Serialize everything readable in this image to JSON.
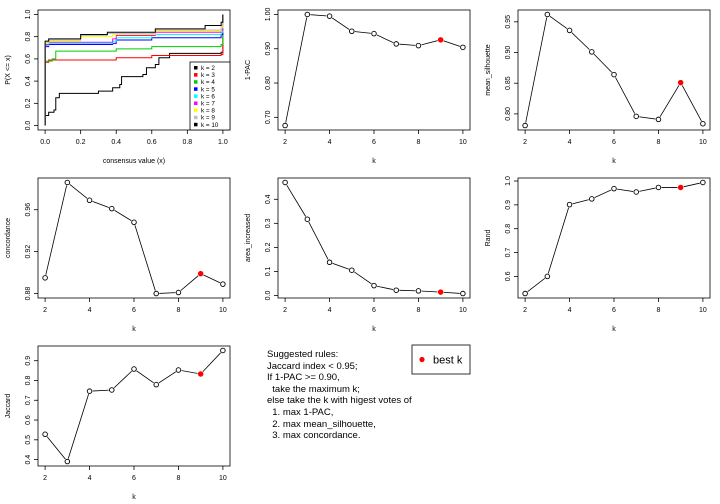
{
  "chart_data": [
    {
      "type": "line",
      "subtype": "ecdf",
      "xlabel": "consensus value (x)",
      "ylabel": "P(X <= x)",
      "xlim": [
        0,
        1
      ],
      "ylim": [
        0,
        1
      ],
      "xticks": [
        "0.0",
        "0.2",
        "0.4",
        "0.6",
        "0.8",
        "1.0"
      ],
      "yticks": [
        "0.0",
        "0.2",
        "0.4",
        "0.6",
        "0.8",
        "1.0"
      ],
      "legend_position": "bottom-right",
      "series": [
        {
          "name": "k = 2",
          "color": "#000000",
          "points": [
            [
              0,
              0
            ],
            [
              0,
              0.09
            ],
            [
              0.02,
              0.12
            ],
            [
              0.05,
              0.14
            ],
            [
              0.06,
              0.25
            ],
            [
              0.08,
              0.29
            ],
            [
              0.3,
              0.31
            ],
            [
              0.38,
              0.34
            ],
            [
              0.42,
              0.37
            ],
            [
              0.43,
              0.44
            ],
            [
              0.55,
              0.46
            ],
            [
              0.57,
              0.52
            ],
            [
              0.62,
              0.55
            ],
            [
              0.64,
              0.61
            ],
            [
              0.7,
              0.65
            ],
            [
              0.99,
              0.66
            ],
            [
              1,
              1
            ]
          ]
        },
        {
          "name": "k = 3",
          "color": "#FF0000",
          "points": [
            [
              0,
              0
            ],
            [
              0,
              0.57
            ],
            [
              0.02,
              0.59
            ],
            [
              0.4,
              0.61
            ],
            [
              0.6,
              0.63
            ],
            [
              0.99,
              0.64
            ],
            [
              1,
              1
            ]
          ]
        },
        {
          "name": "k = 4",
          "color": "#00CD00",
          "points": [
            [
              0,
              0
            ],
            [
              0,
              0.58
            ],
            [
              0.04,
              0.6
            ],
            [
              0.06,
              0.67
            ],
            [
              0.4,
              0.69
            ],
            [
              0.6,
              0.71
            ],
            [
              0.99,
              0.73
            ],
            [
              1,
              1
            ]
          ]
        },
        {
          "name": "k = 5",
          "color": "#0000FF",
          "points": [
            [
              0,
              0
            ],
            [
              0,
              0.71
            ],
            [
              0.02,
              0.73
            ],
            [
              0.38,
              0.74
            ],
            [
              0.4,
              0.77
            ],
            [
              0.6,
              0.79
            ],
            [
              0.99,
              0.82
            ],
            [
              1,
              1
            ]
          ]
        },
        {
          "name": "k = 6",
          "color": "#00FFFF",
          "points": [
            [
              0,
              0
            ],
            [
              0,
              0.72
            ],
            [
              0.02,
              0.74
            ],
            [
              0.38,
              0.76
            ],
            [
              0.4,
              0.79
            ],
            [
              0.6,
              0.82
            ],
            [
              0.99,
              0.84
            ],
            [
              1,
              1
            ]
          ]
        },
        {
          "name": "k = 7",
          "color": "#FF00FF",
          "points": [
            [
              0,
              0
            ],
            [
              0,
              0.73
            ],
            [
              0.02,
              0.75
            ],
            [
              0.38,
              0.78
            ],
            [
              0.4,
              0.81
            ],
            [
              0.62,
              0.84
            ],
            [
              0.99,
              0.86
            ],
            [
              1,
              1
            ]
          ]
        },
        {
          "name": "k = 8",
          "color": "#FFFF00",
          "points": [
            [
              0,
              0
            ],
            [
              0,
              0.74
            ],
            [
              0.02,
              0.76
            ],
            [
              0.2,
              0.8
            ],
            [
              0.38,
              0.82
            ],
            [
              0.62,
              0.85
            ],
            [
              0.99,
              0.88
            ],
            [
              1,
              1
            ]
          ]
        },
        {
          "name": "k = 9",
          "color": "#BEBEBE",
          "points": [
            [
              0,
              0
            ],
            [
              0,
              0.75
            ],
            [
              0.02,
              0.77
            ],
            [
              0.2,
              0.81
            ],
            [
              0.35,
              0.83
            ],
            [
              0.62,
              0.86
            ],
            [
              0.99,
              0.9
            ],
            [
              1,
              1
            ]
          ]
        },
        {
          "name": "k = 10",
          "color": "#000000",
          "points": [
            [
              0,
              0
            ],
            [
              0,
              0.76
            ],
            [
              0.02,
              0.78
            ],
            [
              0.2,
              0.82
            ],
            [
              0.35,
              0.84
            ],
            [
              0.62,
              0.87
            ],
            [
              0.9,
              0.9
            ],
            [
              0.99,
              0.93
            ],
            [
              1,
              1
            ]
          ]
        }
      ]
    },
    {
      "type": "line",
      "xlabel": "k",
      "ylabel": "1-PAC",
      "x": [
        2,
        3,
        4,
        5,
        6,
        7,
        8,
        9,
        10
      ],
      "values": [
        0.676,
        1.0,
        0.995,
        0.951,
        0.944,
        0.914,
        0.909,
        0.926,
        0.904
      ],
      "best_k": 9,
      "xticks": [
        "2",
        "4",
        "6",
        "8",
        "10"
      ],
      "yticks": [
        "0.70",
        "0.80",
        "0.90",
        "1.00"
      ]
    },
    {
      "type": "line",
      "xlabel": "k",
      "ylabel": "mean_silhouette",
      "x": [
        2,
        3,
        4,
        5,
        6,
        7,
        8,
        9,
        10
      ],
      "values": [
        0.781,
        0.962,
        0.936,
        0.901,
        0.864,
        0.796,
        0.791,
        0.851,
        0.784
      ],
      "best_k": 9,
      "xticks": [
        "2",
        "4",
        "6",
        "8",
        "10"
      ],
      "yticks": [
        "0.80",
        "0.85",
        "0.90",
        "0.95"
      ]
    },
    {
      "type": "line",
      "xlabel": "k",
      "ylabel": "concordance",
      "x": [
        2,
        3,
        4,
        5,
        6,
        7,
        8,
        9,
        10
      ],
      "values": [
        0.895,
        0.986,
        0.969,
        0.961,
        0.948,
        0.88,
        0.881,
        0.899,
        0.889
      ],
      "best_k": 9,
      "xticks": [
        "2",
        "4",
        "6",
        "8",
        "10"
      ],
      "yticks": [
        "0.88",
        "0.92",
        "0.96"
      ]
    },
    {
      "type": "line",
      "xlabel": "k",
      "ylabel": "area_increased",
      "x": [
        2,
        3,
        4,
        5,
        6,
        7,
        8,
        9,
        10
      ],
      "values": [
        0.47,
        0.317,
        0.138,
        0.105,
        0.041,
        0.022,
        0.019,
        0.014,
        0.008
      ],
      "best_k": 9,
      "xticks": [
        "2",
        "4",
        "6",
        "8",
        "10"
      ],
      "yticks": [
        "0.0",
        "0.1",
        "0.2",
        "0.3",
        "0.4"
      ]
    },
    {
      "type": "line",
      "xlabel": "k",
      "ylabel": "Rand",
      "x": [
        2,
        3,
        4,
        5,
        6,
        7,
        8,
        9,
        10
      ],
      "values": [
        0.528,
        0.6,
        0.901,
        0.925,
        0.968,
        0.954,
        0.973,
        0.973,
        0.994
      ],
      "best_k": 9,
      "xticks": [
        "2",
        "4",
        "6",
        "8",
        "10"
      ],
      "yticks": [
        "0.6",
        "0.7",
        "0.8",
        "0.9",
        "1.0"
      ]
    },
    {
      "type": "line",
      "xlabel": "k",
      "ylabel": "Jaccard",
      "x": [
        2,
        3,
        4,
        5,
        6,
        7,
        8,
        9,
        10
      ],
      "values": [
        0.528,
        0.39,
        0.746,
        0.752,
        0.858,
        0.779,
        0.853,
        0.833,
        0.952
      ],
      "best_k": 9,
      "xticks": [
        "2",
        "4",
        "6",
        "8",
        "10"
      ],
      "yticks": [
        "0.4",
        "0.5",
        "0.6",
        "0.7",
        "0.8",
        "0.9"
      ]
    }
  ],
  "colors": {
    "best_k": "#FF0000",
    "line": "#000000"
  },
  "rules_text": "Suggested rules:\nJaccard index < 0.95;\nIf 1-PAC >= 0.90,\n  take the maximum k;\nelse take the k with higest votes of\n  1. max 1-PAC,\n  2. max mean_silhouette,\n  3. max concordance.",
  "best_k_legend": "best k"
}
